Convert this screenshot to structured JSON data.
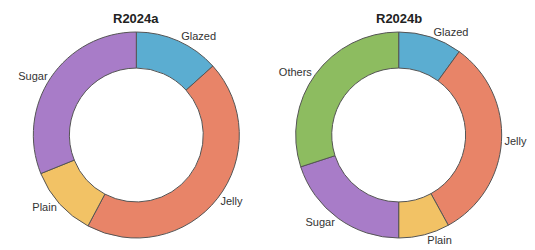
{
  "chart_data": [
    {
      "type": "pie",
      "title": "R2024a",
      "categories": [
        "Glazed",
        "Jelly",
        "Plain",
        "Sugar"
      ],
      "values": [
        12,
        40,
        10,
        28
      ],
      "colors": [
        "#5badd1",
        "#e88468",
        "#f2c265",
        "#a87cc8"
      ]
    },
    {
      "type": "pie",
      "title": "R2024b",
      "categories": [
        "Glazed",
        "Jelly",
        "Plain",
        "Sugar",
        "Others"
      ],
      "values": [
        10,
        32,
        8,
        20,
        30
      ],
      "colors": [
        "#5badd1",
        "#e88468",
        "#f2c265",
        "#a87cc8",
        "#8dbc60"
      ]
    }
  ]
}
